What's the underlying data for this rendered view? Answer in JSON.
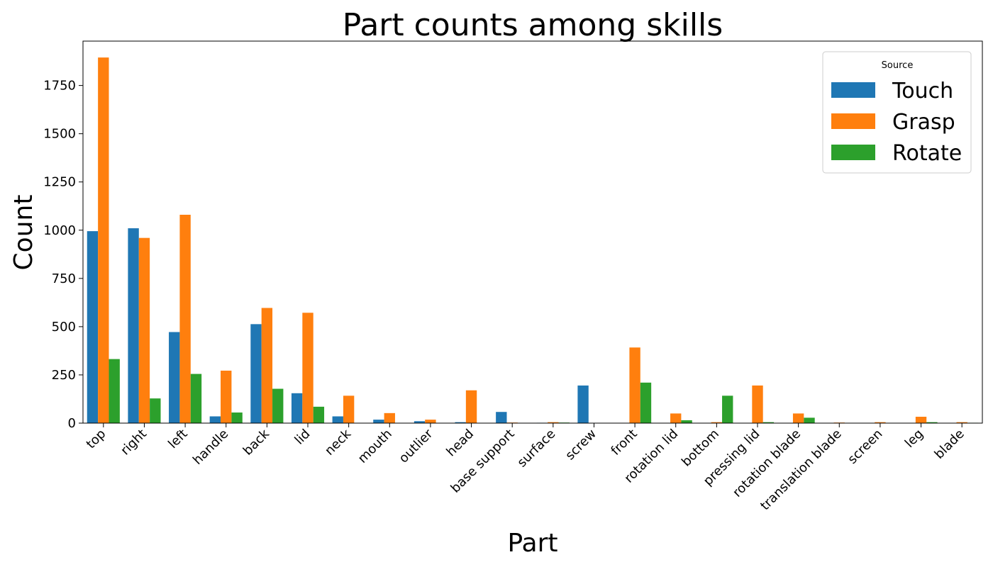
{
  "chart_data": {
    "type": "bar",
    "title": "Part counts among skills",
    "xlabel": "Part",
    "ylabel": "Count",
    "ylim": [
      0,
      1980
    ],
    "yticks": [
      0,
      250,
      500,
      750,
      1000,
      1250,
      1500,
      1750
    ],
    "grid": false,
    "legend": {
      "title": "Source",
      "placement": "top-right"
    },
    "categories": [
      "top",
      "right",
      "left",
      "handle",
      "back",
      "lid",
      "neck",
      "mouth",
      "outlier",
      "head",
      "base support",
      "surface",
      "screw",
      "front",
      "rotation lid",
      "bottom",
      "pressing lid",
      "rotation blade",
      "translation blade",
      "screen",
      "leg",
      "blade"
    ],
    "series": [
      {
        "name": "Touch",
        "color": "#1f77b4",
        "values": [
          995,
          1010,
          472,
          35,
          513,
          155,
          35,
          18,
          10,
          5,
          58,
          2,
          195,
          0,
          0,
          0,
          0,
          0,
          0,
          0,
          0,
          0
        ]
      },
      {
        "name": "Grasp",
        "color": "#ff7f0e",
        "values": [
          1895,
          960,
          1080,
          272,
          597,
          572,
          142,
          52,
          18,
          170,
          3,
          5,
          0,
          392,
          50,
          5,
          195,
          50,
          3,
          5,
          33,
          5
        ]
      },
      {
        "name": "Rotate",
        "color": "#2ca02c",
        "values": [
          332,
          128,
          255,
          55,
          178,
          85,
          0,
          0,
          0,
          0,
          0,
          3,
          0,
          210,
          15,
          142,
          5,
          28,
          0,
          0,
          5,
          2
        ]
      }
    ]
  }
}
